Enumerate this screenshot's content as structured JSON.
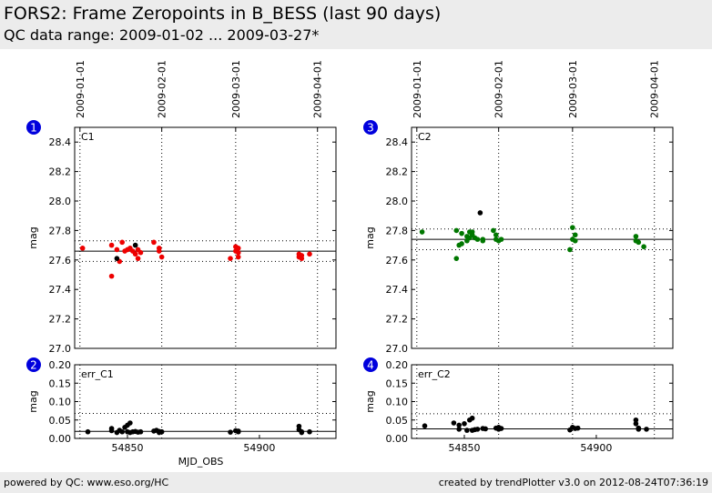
{
  "page": {
    "title": "FORS2: Frame Zeropoints in B_BESS (last 90 days)",
    "subtitle": "QC data range: 2009-01-02 ... 2009-03-27*",
    "footer_left": "powered by QC: www.eso.org/HC",
    "footer_right": "created by trendPlotter v3.0 on 2012-08-24T07:36:19"
  },
  "colors": {
    "header_bg": "#ececec",
    "badge": "#0000dd",
    "red": "#ee0000",
    "green": "#007700",
    "black": "#000000"
  },
  "chart_data": [
    {
      "id": "1",
      "type": "scatter",
      "label": "C1",
      "ylabel": "mag",
      "xlabel": "",
      "xlim": [
        54830,
        54929
      ],
      "ylim": [
        27.0,
        28.5
      ],
      "yticks": [
        "27.0",
        "27.2",
        "27.4",
        "27.6",
        "27.8",
        "28.0",
        "28.2",
        "28.4"
      ],
      "date_ticks": [
        {
          "x": 54832,
          "label": "2009-01-01"
        },
        {
          "x": 54863,
          "label": "2009-02-01"
        },
        {
          "x": 54891,
          "label": "2009-03-01"
        },
        {
          "x": 54922,
          "label": "2009-04-01"
        }
      ],
      "mean": 27.66,
      "band": [
        27.59,
        27.73
      ],
      "series": [
        {
          "color": "red",
          "points": [
            [
              54833,
              27.68
            ],
            [
              54844,
              27.7
            ],
            [
              54844,
              27.49
            ],
            [
              54846,
              27.67
            ],
            [
              54847,
              27.59
            ],
            [
              54848,
              27.72
            ],
            [
              54849,
              27.66
            ],
            [
              54850,
              27.67
            ],
            [
              54851,
              27.68
            ],
            [
              54852,
              27.66
            ],
            [
              54853,
              27.64
            ],
            [
              54854,
              27.67
            ],
            [
              54854,
              27.61
            ],
            [
              54855,
              27.65
            ],
            [
              54860,
              27.72
            ],
            [
              54862,
              27.68
            ],
            [
              54862,
              27.66
            ],
            [
              54863,
              27.62
            ],
            [
              54889,
              27.61
            ],
            [
              54891,
              27.69
            ],
            [
              54891,
              27.66
            ],
            [
              54892,
              27.68
            ],
            [
              54892,
              27.65
            ],
            [
              54892,
              27.62
            ],
            [
              54915,
              27.64
            ],
            [
              54915,
              27.62
            ],
            [
              54916,
              27.61
            ],
            [
              54916,
              27.63
            ],
            [
              54919,
              27.64
            ]
          ]
        },
        {
          "color": "black",
          "points": [
            [
              54846,
              27.61
            ],
            [
              54853,
              27.7
            ]
          ]
        }
      ]
    },
    {
      "id": "2",
      "type": "scatter",
      "label": "err_C1",
      "ylabel": "mag",
      "xlabel": "MJD_OBS",
      "xlim": [
        54830,
        54929
      ],
      "ylim": [
        0.0,
        0.2
      ],
      "yticks": [
        "0.00",
        "0.05",
        "0.10",
        "0.15",
        "0.20"
      ],
      "xticks": [
        {
          "x": 54850,
          "label": "54850"
        },
        {
          "x": 54900,
          "label": "54900"
        }
      ],
      "date_lines": [
        54832,
        54863,
        54891,
        54922
      ],
      "mean": 0.019,
      "band": [
        0.0,
        0.068
      ],
      "series": [
        {
          "color": "black",
          "points": [
            [
              54835,
              0.018
            ],
            [
              54844,
              0.027
            ],
            [
              54844,
              0.021
            ],
            [
              54846,
              0.016
            ],
            [
              54847,
              0.022
            ],
            [
              54848,
              0.018
            ],
            [
              54849,
              0.03
            ],
            [
              54850,
              0.036
            ],
            [
              54850,
              0.018
            ],
            [
              54851,
              0.042
            ],
            [
              54851,
              0.016
            ],
            [
              54852,
              0.018
            ],
            [
              54853,
              0.019
            ],
            [
              54854,
              0.017
            ],
            [
              54855,
              0.018
            ],
            [
              54860,
              0.02
            ],
            [
              54861,
              0.022
            ],
            [
              54862,
              0.019
            ],
            [
              54862,
              0.016
            ],
            [
              54863,
              0.018
            ],
            [
              54889,
              0.017
            ],
            [
              54891,
              0.021
            ],
            [
              54892,
              0.018
            ],
            [
              54892,
              0.02
            ],
            [
              54915,
              0.033
            ],
            [
              54915,
              0.024
            ],
            [
              54916,
              0.018
            ],
            [
              54916,
              0.016
            ],
            [
              54919,
              0.018
            ]
          ]
        }
      ]
    },
    {
      "id": "3",
      "type": "scatter",
      "label": "C2",
      "ylabel": "mag",
      "xlabel": "",
      "xlim": [
        54830,
        54929
      ],
      "ylim": [
        27.0,
        28.5
      ],
      "yticks": [
        "27.0",
        "27.2",
        "27.4",
        "27.6",
        "27.8",
        "28.0",
        "28.2",
        "28.4"
      ],
      "date_ticks": [
        {
          "x": 54832,
          "label": "2009-01-01"
        },
        {
          "x": 54863,
          "label": "2009-02-01"
        },
        {
          "x": 54891,
          "label": "2009-03-01"
        },
        {
          "x": 54922,
          "label": "2009-04-01"
        }
      ],
      "mean": 27.74,
      "band": [
        27.67,
        27.81
      ],
      "series": [
        {
          "color": "green",
          "points": [
            [
              54834,
              27.79
            ],
            [
              54847,
              27.8
            ],
            [
              54847,
              27.61
            ],
            [
              54848,
              27.7
            ],
            [
              54849,
              27.78
            ],
            [
              54849,
              27.71
            ],
            [
              54851,
              27.76
            ],
            [
              54851,
              27.73
            ],
            [
              54852,
              27.79
            ],
            [
              54852,
              27.75
            ],
            [
              54853,
              27.77
            ],
            [
              54853,
              27.79
            ],
            [
              54854,
              27.75
            ],
            [
              54855,
              27.74
            ],
            [
              54857,
              27.74
            ],
            [
              54857,
              27.73
            ],
            [
              54861,
              27.8
            ],
            [
              54862,
              27.77
            ],
            [
              54862,
              27.74
            ],
            [
              54863,
              27.73
            ],
            [
              54864,
              27.74
            ],
            [
              54890,
              27.67
            ],
            [
              54891,
              27.82
            ],
            [
              54891,
              27.74
            ],
            [
              54892,
              27.77
            ],
            [
              54892,
              27.73
            ],
            [
              54915,
              27.76
            ],
            [
              54915,
              27.73
            ],
            [
              54916,
              27.72
            ],
            [
              54918,
              27.69
            ]
          ]
        },
        {
          "color": "black",
          "points": [
            [
              54856,
              27.92
            ]
          ]
        }
      ]
    },
    {
      "id": "4",
      "type": "scatter",
      "label": "err_C2",
      "ylabel": "mag",
      "xlabel": "",
      "xlim": [
        54830,
        54929
      ],
      "ylim": [
        0.0,
        0.2
      ],
      "yticks": [
        "0.00",
        "0.05",
        "0.10",
        "0.15",
        "0.20"
      ],
      "xticks": [
        {
          "x": 54850,
          "label": "54850"
        },
        {
          "x": 54900,
          "label": "54900"
        }
      ],
      "date_lines": [
        54832,
        54863,
        54891,
        54922
      ],
      "mean": 0.026,
      "band": [
        0.0,
        0.067
      ],
      "series": [
        {
          "color": "black",
          "points": [
            [
              54835,
              0.034
            ],
            [
              54846,
              0.042
            ],
            [
              54848,
              0.036
            ],
            [
              54848,
              0.025
            ],
            [
              54850,
              0.04
            ],
            [
              54851,
              0.022
            ],
            [
              54852,
              0.05
            ],
            [
              54853,
              0.055
            ],
            [
              54853,
              0.022
            ],
            [
              54854,
              0.024
            ],
            [
              54855,
              0.025
            ],
            [
              54857,
              0.027
            ],
            [
              54858,
              0.026
            ],
            [
              54862,
              0.028
            ],
            [
              54863,
              0.03
            ],
            [
              54863,
              0.025
            ],
            [
              54864,
              0.027
            ],
            [
              54890,
              0.023
            ],
            [
              54891,
              0.03
            ],
            [
              54892,
              0.027
            ],
            [
              54893,
              0.028
            ],
            [
              54915,
              0.05
            ],
            [
              54915,
              0.04
            ],
            [
              54916,
              0.028
            ],
            [
              54916,
              0.025
            ],
            [
              54919,
              0.025
            ]
          ]
        }
      ]
    }
  ]
}
